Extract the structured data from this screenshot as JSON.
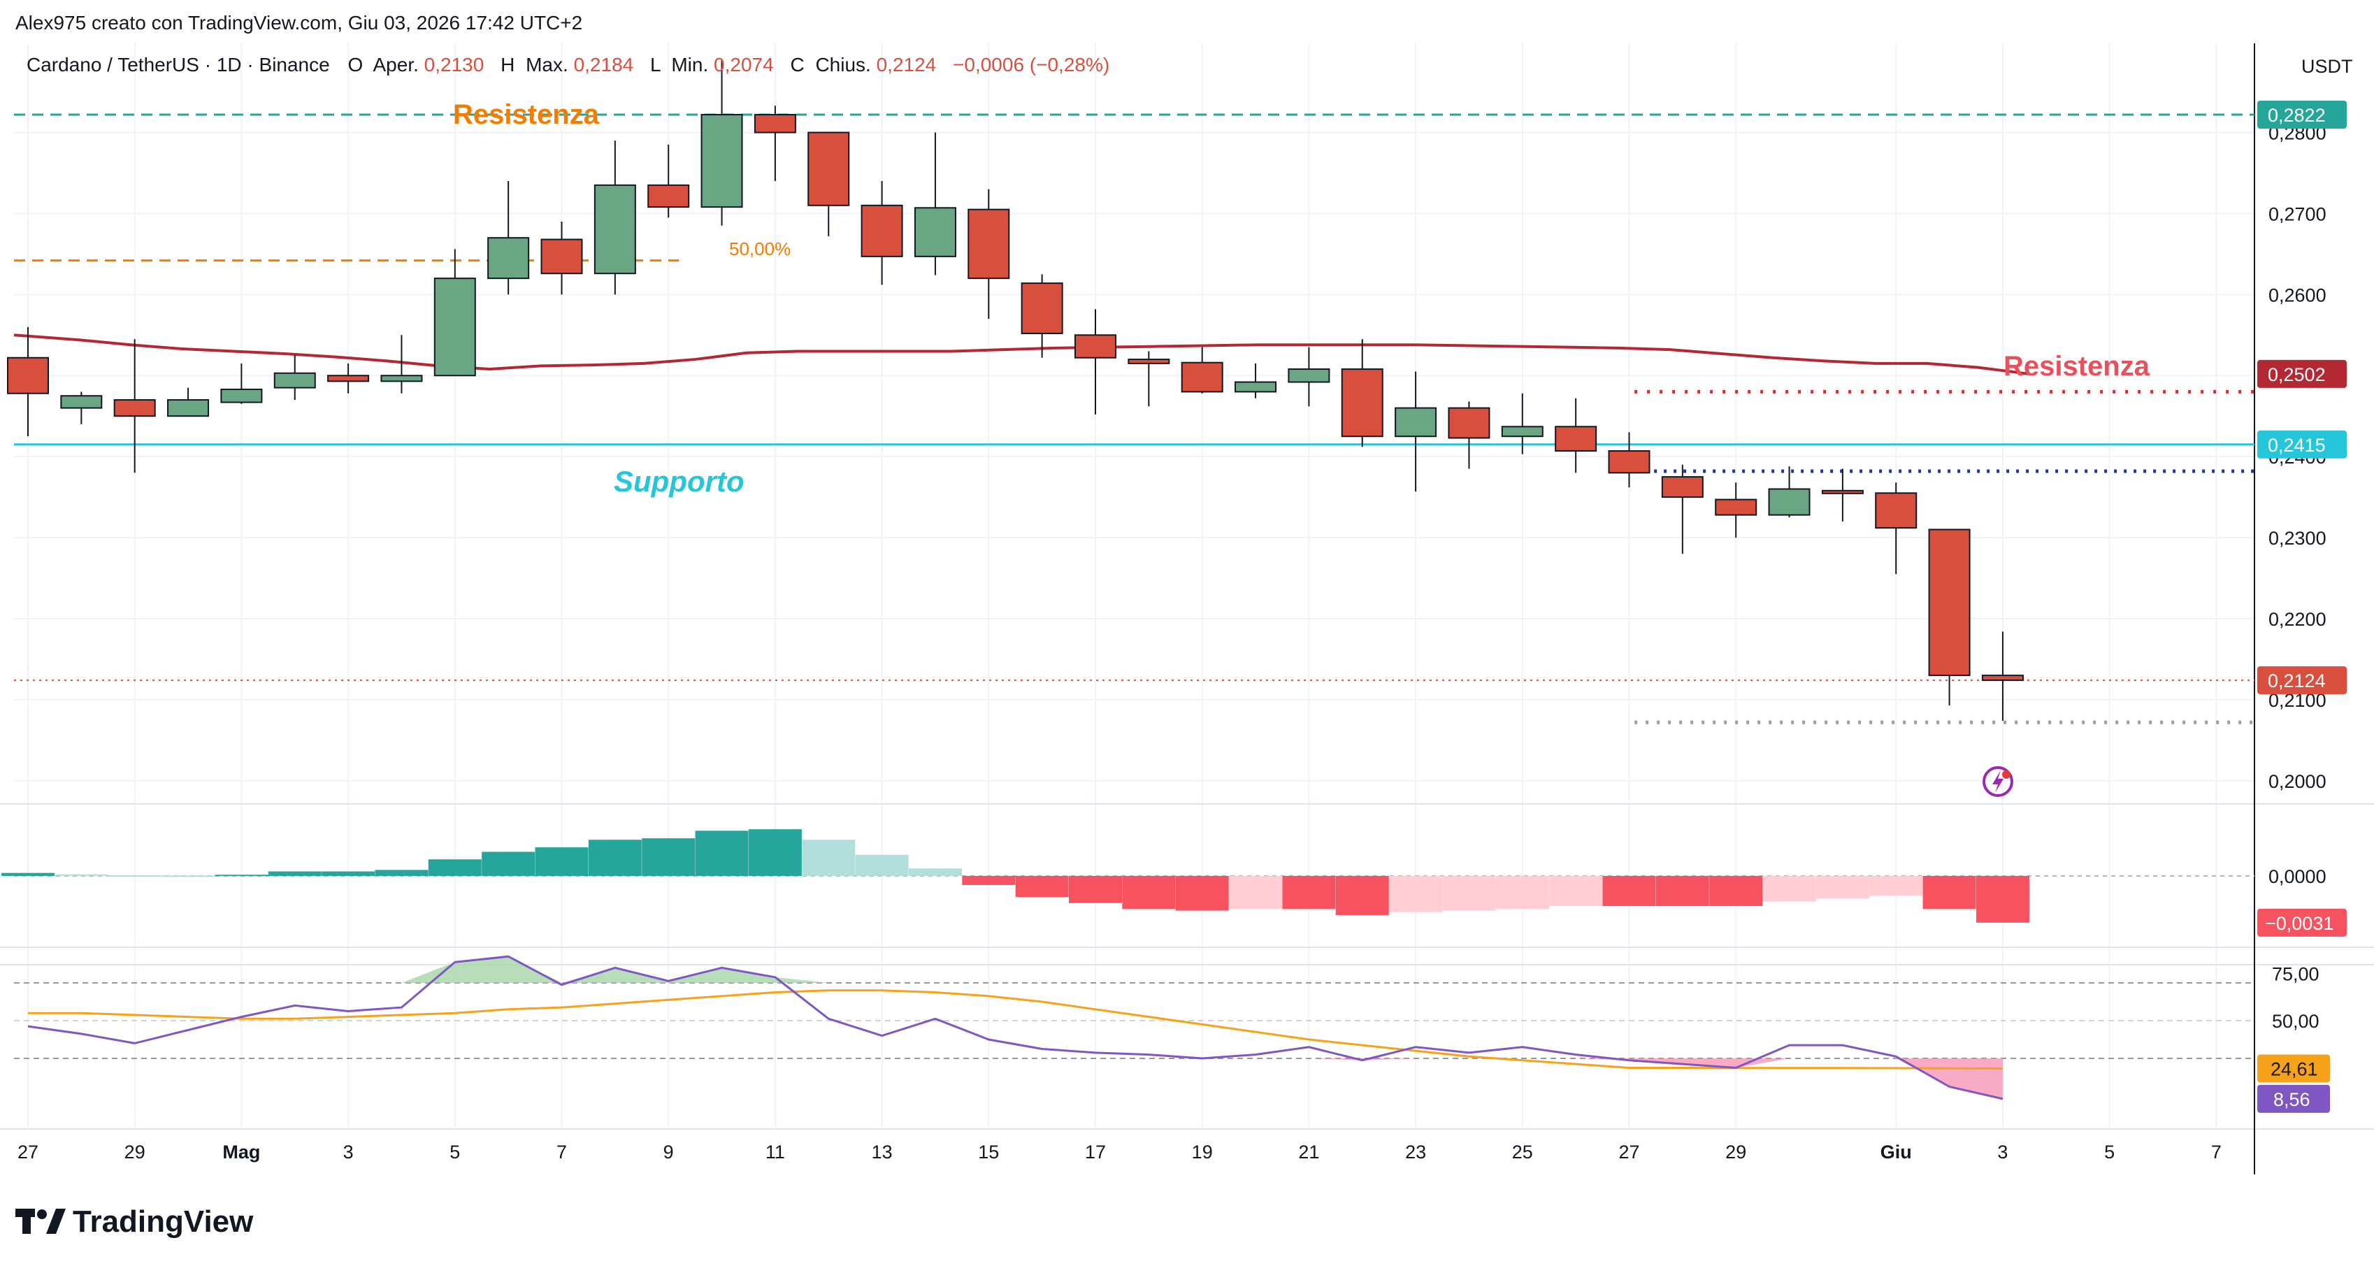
{
  "header": {
    "creator": "Alex975 creato con TradingView.com, Giu 03, 2026 17:42 UTC+2",
    "symbol_line": "Cardano / TetherUS · 1D · Binance",
    "ohlc": [
      {
        "label": "O",
        "name": "Aper.",
        "value": "0,2130"
      },
      {
        "label": "H",
        "name": "Max.",
        "value": "0,2184"
      },
      {
        "label": "L",
        "name": "Min.",
        "value": "0,2074"
      },
      {
        "label": "C",
        "name": "Chius.",
        "value": "0,2124"
      }
    ],
    "change": "−0,0006 (−0,28%)"
  },
  "brand": "TradingView",
  "currency": "USDT",
  "colors": {
    "up": "#6aa584",
    "down": "#d94f3d",
    "support": "#26c6da",
    "ma": "#b22833",
    "fib": "#f57c00",
    "resist_teal": "#26a69a",
    "hist_up_strong": "#26a69a",
    "hist_up_weak": "#b2dfdb",
    "hist_down_strong": "#f7525f",
    "hist_down_weak": "#ffcdd2",
    "rsi": "#7e57c2",
    "rsi_ma": "#f7a21b"
  },
  "annotations": {
    "resistenza_top": "Resistenza",
    "resistenza_right": "Resistenza",
    "supporto": "Supporto",
    "fib_label": "50,00%"
  },
  "price_axis": {
    "ticks": [
      "0,2800",
      "0,2700",
      "0,2600",
      "0,2500",
      "0,2400",
      "0,2300",
      "0,2200",
      "0,2100",
      "0,2000"
    ],
    "tick_values": [
      0.28,
      0.27,
      0.26,
      0.25,
      0.24,
      0.23,
      0.22,
      0.21,
      0.2
    ],
    "badges": [
      {
        "text": "0,2822",
        "value": 0.2822,
        "color": "#26a69a"
      },
      {
        "text": "0,2502",
        "value": 0.2502,
        "color": "#b22833"
      },
      {
        "text": "0,2415",
        "value": 0.2415,
        "color": "#26c6da"
      },
      {
        "text": "0,2124",
        "value": 0.2124,
        "color": "#d94f3d"
      }
    ]
  },
  "macd_axis": {
    "zero_label": "0,0000",
    "badge": "−0,0031"
  },
  "rsi_axis": {
    "ticks": [
      "75,00",
      "50,00"
    ],
    "badge_ma": "24,61",
    "badge_rsi": "8,56"
  },
  "time_axis": {
    "labels": [
      "27",
      "29",
      "Mag",
      "3",
      "5",
      "7",
      "9",
      "11",
      "13",
      "15",
      "17",
      "19",
      "21",
      "23",
      "25",
      "27",
      "29",
      "Giu",
      "3",
      "5",
      "7"
    ],
    "bold": [
      "Mag",
      "Giu"
    ],
    "label_index": [
      0,
      2,
      4,
      6,
      8,
      10,
      12,
      14,
      16,
      18,
      20,
      22,
      24,
      26,
      28,
      30,
      32,
      35,
      37,
      39,
      41
    ]
  },
  "chart_data": {
    "type": "candlestick",
    "title": "Cardano / TetherUS · 1D · Binance",
    "ylim": [
      0.198,
      0.291
    ],
    "candles": [
      {
        "o": 0.2522,
        "h": 0.256,
        "l": 0.2425,
        "c": 0.2478
      },
      {
        "o": 0.246,
        "h": 0.248,
        "l": 0.244,
        "c": 0.2475
      },
      {
        "o": 0.247,
        "h": 0.2545,
        "l": 0.238,
        "c": 0.245
      },
      {
        "o": 0.245,
        "h": 0.2485,
        "l": 0.245,
        "c": 0.247
      },
      {
        "o": 0.2467,
        "h": 0.2515,
        "l": 0.2465,
        "c": 0.2483
      },
      {
        "o": 0.2485,
        "h": 0.2525,
        "l": 0.247,
        "c": 0.2503
      },
      {
        "o": 0.25,
        "h": 0.2515,
        "l": 0.2478,
        "c": 0.2493
      },
      {
        "o": 0.2493,
        "h": 0.255,
        "l": 0.2478,
        "c": 0.25
      },
      {
        "o": 0.25,
        "h": 0.2656,
        "l": 0.25,
        "c": 0.262
      },
      {
        "o": 0.262,
        "h": 0.274,
        "l": 0.26,
        "c": 0.267
      },
      {
        "o": 0.2668,
        "h": 0.269,
        "l": 0.26,
        "c": 0.2626
      },
      {
        "o": 0.2626,
        "h": 0.279,
        "l": 0.26,
        "c": 0.2735
      },
      {
        "o": 0.2735,
        "h": 0.2785,
        "l": 0.2695,
        "c": 0.2708
      },
      {
        "o": 0.2708,
        "h": 0.289,
        "l": 0.2685,
        "c": 0.2822
      },
      {
        "o": 0.2822,
        "h": 0.2833,
        "l": 0.274,
        "c": 0.28
      },
      {
        "o": 0.28,
        "h": 0.28,
        "l": 0.2672,
        "c": 0.271
      },
      {
        "o": 0.271,
        "h": 0.274,
        "l": 0.2612,
        "c": 0.2647
      },
      {
        "o": 0.2647,
        "h": 0.28,
        "l": 0.2624,
        "c": 0.2707
      },
      {
        "o": 0.2705,
        "h": 0.273,
        "l": 0.257,
        "c": 0.262
      },
      {
        "o": 0.2614,
        "h": 0.2625,
        "l": 0.2522,
        "c": 0.2552
      },
      {
        "o": 0.255,
        "h": 0.2582,
        "l": 0.2452,
        "c": 0.2522
      },
      {
        "o": 0.252,
        "h": 0.253,
        "l": 0.2462,
        "c": 0.2515
      },
      {
        "o": 0.2516,
        "h": 0.2535,
        "l": 0.2478,
        "c": 0.248
      },
      {
        "o": 0.248,
        "h": 0.2515,
        "l": 0.2472,
        "c": 0.2492
      },
      {
        "o": 0.2492,
        "h": 0.2535,
        "l": 0.2462,
        "c": 0.2508
      },
      {
        "o": 0.2508,
        "h": 0.2545,
        "l": 0.2412,
        "c": 0.2425
      },
      {
        "o": 0.2425,
        "h": 0.2505,
        "l": 0.2357,
        "c": 0.246
      },
      {
        "o": 0.246,
        "h": 0.2468,
        "l": 0.2385,
        "c": 0.2423
      },
      {
        "o": 0.2425,
        "h": 0.2478,
        "l": 0.2403,
        "c": 0.2437
      },
      {
        "o": 0.2437,
        "h": 0.2472,
        "l": 0.238,
        "c": 0.2407
      },
      {
        "o": 0.2407,
        "h": 0.243,
        "l": 0.2362,
        "c": 0.238
      },
      {
        "o": 0.2375,
        "h": 0.239,
        "l": 0.228,
        "c": 0.235
      },
      {
        "o": 0.2347,
        "h": 0.2368,
        "l": 0.23,
        "c": 0.2328
      },
      {
        "o": 0.2328,
        "h": 0.2388,
        "l": 0.2325,
        "c": 0.236
      },
      {
        "o": 0.2358,
        "h": 0.2385,
        "l": 0.232,
        "c": 0.2355
      },
      {
        "o": 0.2355,
        "h": 0.2368,
        "l": 0.2255,
        "c": 0.2312
      },
      {
        "o": 0.231,
        "h": 0.231,
        "l": 0.2093,
        "c": 0.213
      },
      {
        "o": 0.213,
        "h": 0.2184,
        "l": 0.2074,
        "c": 0.2124
      }
    ],
    "ma_line": [
      0.255,
      0.2544,
      0.2538,
      0.2533,
      0.253,
      0.2527,
      0.2523,
      0.2518,
      0.2512,
      0.2508,
      0.2512,
      0.2513,
      0.2515,
      0.252,
      0.2528,
      0.253,
      0.253,
      0.253,
      0.253,
      0.2532,
      0.2534,
      0.2535,
      0.2536,
      0.2537,
      0.2538,
      0.2538,
      0.2538,
      0.2538,
      0.2537,
      0.2536,
      0.2535,
      0.2534,
      0.2532,
      0.2527,
      0.2522,
      0.2518,
      0.2515,
      0.2515,
      0.251,
      0.2502
    ],
    "ma_x_index": [
      0,
      1,
      2,
      3,
      4,
      5,
      6,
      7,
      8,
      9,
      10,
      11,
      12,
      13,
      14,
      15,
      16,
      17,
      18,
      19,
      20,
      21,
      22,
      23,
      24,
      25,
      26,
      27,
      28,
      29,
      30,
      31,
      32,
      33,
      34,
      35,
      36,
      37,
      37.5,
      37.5
    ],
    "levels": {
      "resistance_top": 0.2822,
      "fib_50": 0.2642,
      "resistance_dotted": 0.248,
      "support": 0.2415,
      "support_dotted": 0.2382,
      "low_dotted": 0.2072,
      "last_price": 0.2124
    },
    "macd_hist": [
      0.0002,
      0.0001,
      5e-05,
      3e-05,
      8e-05,
      0.0003,
      0.0003,
      0.0004,
      0.0011,
      0.0016,
      0.0019,
      0.0024,
      0.0025,
      0.003,
      0.0031,
      0.0024,
      0.0014,
      0.0005,
      -0.0006,
      -0.0014,
      -0.0018,
      -0.0022,
      -0.0023,
      -0.0022,
      -0.0022,
      -0.0026,
      -0.0024,
      -0.0023,
      -0.0022,
      -0.002,
      -0.002,
      -0.002,
      -0.002,
      -0.0017,
      -0.0015,
      -0.0013,
      -0.0022,
      -0.0031
    ],
    "macd_ylim": [
      -0.0045,
      0.0045
    ],
    "rsi": [
      47,
      43,
      38,
      45,
      52,
      58,
      55,
      57,
      81,
      84,
      69,
      78,
      71,
      78,
      73,
      51,
      42,
      51,
      40,
      35,
      33,
      32,
      30,
      32,
      36,
      29,
      36,
      33,
      36,
      32,
      29,
      27,
      25,
      37,
      37,
      31,
      15,
      8.56
    ],
    "rsi_ma": [
      54,
      54,
      53,
      52,
      51,
      51,
      52,
      53,
      54,
      56,
      57,
      59,
      61,
      63,
      65,
      66,
      66,
      65,
      63,
      60,
      56,
      52,
      48,
      44,
      40,
      37,
      34,
      31,
      29,
      27,
      25,
      25,
      24.9,
      24.9,
      24.9,
      24.8,
      24.7,
      24.61
    ],
    "rsi_ylim": [
      0,
      100
    ],
    "rsi_bands": [
      70,
      50,
      30
    ]
  }
}
